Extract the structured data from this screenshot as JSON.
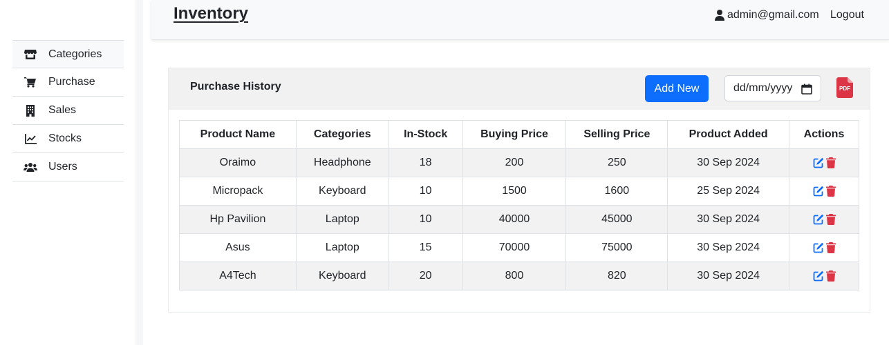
{
  "sidebar": {
    "items": [
      {
        "label": "Categories",
        "icon": "store-icon"
      },
      {
        "label": "Purchase",
        "icon": "cart-icon"
      },
      {
        "label": "Sales",
        "icon": "building-icon"
      },
      {
        "label": "Stocks",
        "icon": "chart-line-icon"
      },
      {
        "label": "Users",
        "icon": "users-icon"
      }
    ]
  },
  "header": {
    "brand": "Inventory",
    "user_email": "admin@gmail.com",
    "logout_label": "Logout"
  },
  "card": {
    "title": "Purchase History",
    "add_label": "Add New",
    "date_placeholder": "dd/mm/yyyy"
  },
  "table": {
    "columns": [
      "Product Name",
      "Categories",
      "In-Stock",
      "Buying Price",
      "Selling Price",
      "Product Added",
      "Actions"
    ],
    "rows": [
      [
        "Oraimo",
        "Headphone",
        "18",
        "200",
        "250",
        "30 Sep 2024"
      ],
      [
        "Micropack",
        "Keyboard",
        "10",
        "1500",
        "1600",
        "25 Sep 2024"
      ],
      [
        "Hp Pavilion",
        "Laptop",
        "10",
        "40000",
        "45000",
        "30 Sep 2024"
      ],
      [
        "Asus",
        "Laptop",
        "15",
        "70000",
        "75000",
        "30 Sep 2024"
      ],
      [
        "A4Tech",
        "Keyboard",
        "20",
        "800",
        "820",
        "30 Sep 2024"
      ]
    ]
  },
  "colors": {
    "primary": "#0d6efd",
    "danger": "#dc3545",
    "edit": "#0d6efd"
  }
}
